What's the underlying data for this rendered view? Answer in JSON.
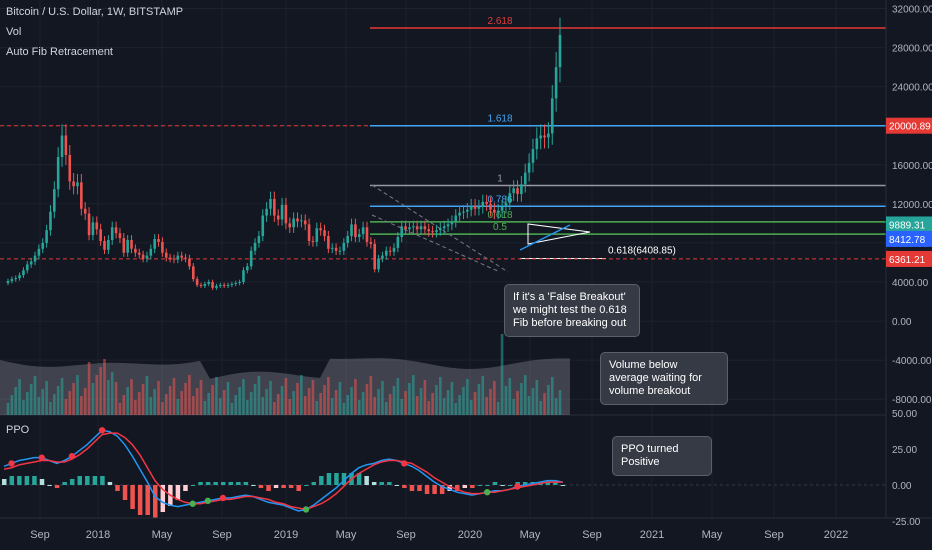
{
  "header": {
    "title": "Bitcoin / U.S. Dollar, 1W, BITSTAMP",
    "vol_label": "Vol",
    "fib_label": "Auto Fib Retracement"
  },
  "ppo_label": "PPO",
  "colors": {
    "background": "#131722",
    "up": "#26a69a",
    "down": "#ef5350",
    "ppo_line": "#2196f3",
    "signal_line": "#f23645",
    "fib_0618": "#4caf50",
    "fib_0786": "#42a5f5",
    "fib_1618": "#42a5f5",
    "fib_2618": "#e53935",
    "fib_1": "#9598a1"
  },
  "chart_data": {
    "type": "candlestick",
    "title": "Bitcoin / U.S. Dollar, 1W, BITSTAMP",
    "x_ticks": [
      "Sep",
      "2018",
      "May",
      "Sep",
      "2019",
      "May",
      "Sep",
      "2020",
      "May",
      "Sep",
      "2021",
      "May",
      "Sep",
      "2022"
    ],
    "price_axis": {
      "ticks": [
        "32000.00",
        "28000.00",
        "24000.00",
        "20000.00",
        "16000.00",
        "12000.00",
        "8000.00",
        "4000.00",
        "0.00",
        "-4000.00",
        "-8000.00"
      ],
      "ylim": [
        -9000,
        32000
      ]
    },
    "ppo_axis": {
      "ticks": [
        "50.00",
        "25.00",
        "0.00",
        "-25.00"
      ],
      "ylim": [
        -25,
        50
      ]
    },
    "price_tags": [
      {
        "label": "20000.89",
        "value": 20000.89,
        "color": "#e53935"
      },
      {
        "label": "9889.31",
        "value": 9889.31,
        "color": "#26a69a"
      },
      {
        "label": "8412.78",
        "value": 8412.78,
        "color": "#2962ff"
      },
      {
        "label": "6361.21",
        "value": 6361.21,
        "color": "#e53935"
      }
    ],
    "fib_levels": [
      {
        "label": "2.618",
        "value": 30000
      },
      {
        "label": "1.618",
        "value": 20000.89
      },
      {
        "label": "1",
        "value": 13880
      },
      {
        "label": "0.786",
        "value": 11750
      },
      {
        "label": "0.618",
        "value": 10150
      },
      {
        "label": "0.5",
        "value": 8900
      },
      {
        "label": "0.618(6408.85)",
        "value": 6408.85
      }
    ],
    "annotations": [
      "If it's a 'False Breakout' we might test the 0.618 Fib before breaking out",
      "Volume below average waiting for volume breakout",
      "PPO turned Positive"
    ],
    "close_series": [
      4100,
      4300,
      4400,
      4700,
      5200,
      5800,
      6100,
      6700,
      7400,
      8000,
      9300,
      11200,
      13500,
      16800,
      19000,
      17000,
      14300,
      13800,
      14200,
      11500,
      11000,
      8800,
      10100,
      9400,
      8200,
      7300,
      8300,
      9600,
      9000,
      8500,
      7000,
      8300,
      7400,
      7000,
      6800,
      6400,
      6700,
      7400,
      8400,
      8100,
      7000,
      6500,
      6400,
      6300,
      6700,
      6500,
      6400,
      5600,
      4300,
      3700,
      3600,
      3800,
      4000,
      3400,
      3600,
      3700,
      3600,
      3700,
      3800,
      3900,
      4000,
      5200,
      5600,
      7200,
      8000,
      8700,
      10800,
      11500,
      12500,
      10800,
      10400,
      11900,
      10000,
      9600,
      10500,
      10200,
      10300,
      9900,
      8200,
      8100,
      9500,
      9300,
      8700,
      7400,
      7500,
      7200,
      7200,
      8000,
      8700,
      9900,
      8600,
      8900,
      9600,
      8100,
      7900,
      5300,
      6400,
      6700,
      7200,
      7100,
      7500,
      8600,
      9700,
      9400,
      9600,
      9700,
      9400,
      9700,
      9400,
      9200,
      9100,
      9300,
      9500,
      9700,
      9900,
      10200,
      10800,
      11100,
      11200,
      11400,
      11800,
      11500,
      11700,
      12200,
      12000,
      11400,
      11100,
      11300,
      11700,
      12100,
      13100,
      13600,
      13000,
      14000,
      15200,
      16200,
      17600,
      18700,
      19000,
      18800,
      19200,
      22800,
      26000,
      29300
    ],
    "volume_average_max": 1900,
    "ppo": {
      "ppo_line": [
        13,
        15,
        17,
        18,
        19,
        19,
        17,
        15,
        17,
        20,
        24,
        28,
        33,
        38,
        37,
        34,
        28,
        20,
        11,
        2,
        -8,
        -12,
        -14,
        -15,
        -14,
        -13,
        -12,
        -11,
        -10,
        -9,
        -9,
        -8,
        -7,
        -8,
        -10,
        -12,
        -13,
        -14,
        -16,
        -18,
        -17,
        -14,
        -10,
        -6,
        -2,
        3,
        8,
        12,
        14,
        15,
        17,
        18,
        17,
        15,
        13,
        10,
        6,
        2,
        -1,
        -3,
        -5,
        -6,
        -7,
        -6,
        -5,
        -4,
        -4,
        -3,
        -1,
        0,
        1,
        2,
        3,
        3,
        2
      ],
      "signal_line": [
        11,
        12,
        14,
        15,
        16,
        17,
        17,
        16,
        16,
        18,
        21,
        25,
        30,
        35,
        36,
        36,
        33,
        28,
        21,
        12,
        3,
        -3,
        -7,
        -10,
        -12,
        -13,
        -13,
        -12,
        -11,
        -10,
        -10,
        -9,
        -8,
        -8,
        -9,
        -10,
        -12,
        -13,
        -15,
        -16,
        -17,
        -15,
        -13,
        -10,
        -6,
        -1,
        4,
        8,
        11,
        14,
        16,
        17,
        17,
        16,
        15,
        12,
        9,
        5,
        2,
        -1,
        -3,
        -5,
        -6,
        -6,
        -5,
        -5,
        -4,
        -3,
        -2,
        -1,
        0,
        1,
        2,
        2,
        2
      ]
    }
  }
}
